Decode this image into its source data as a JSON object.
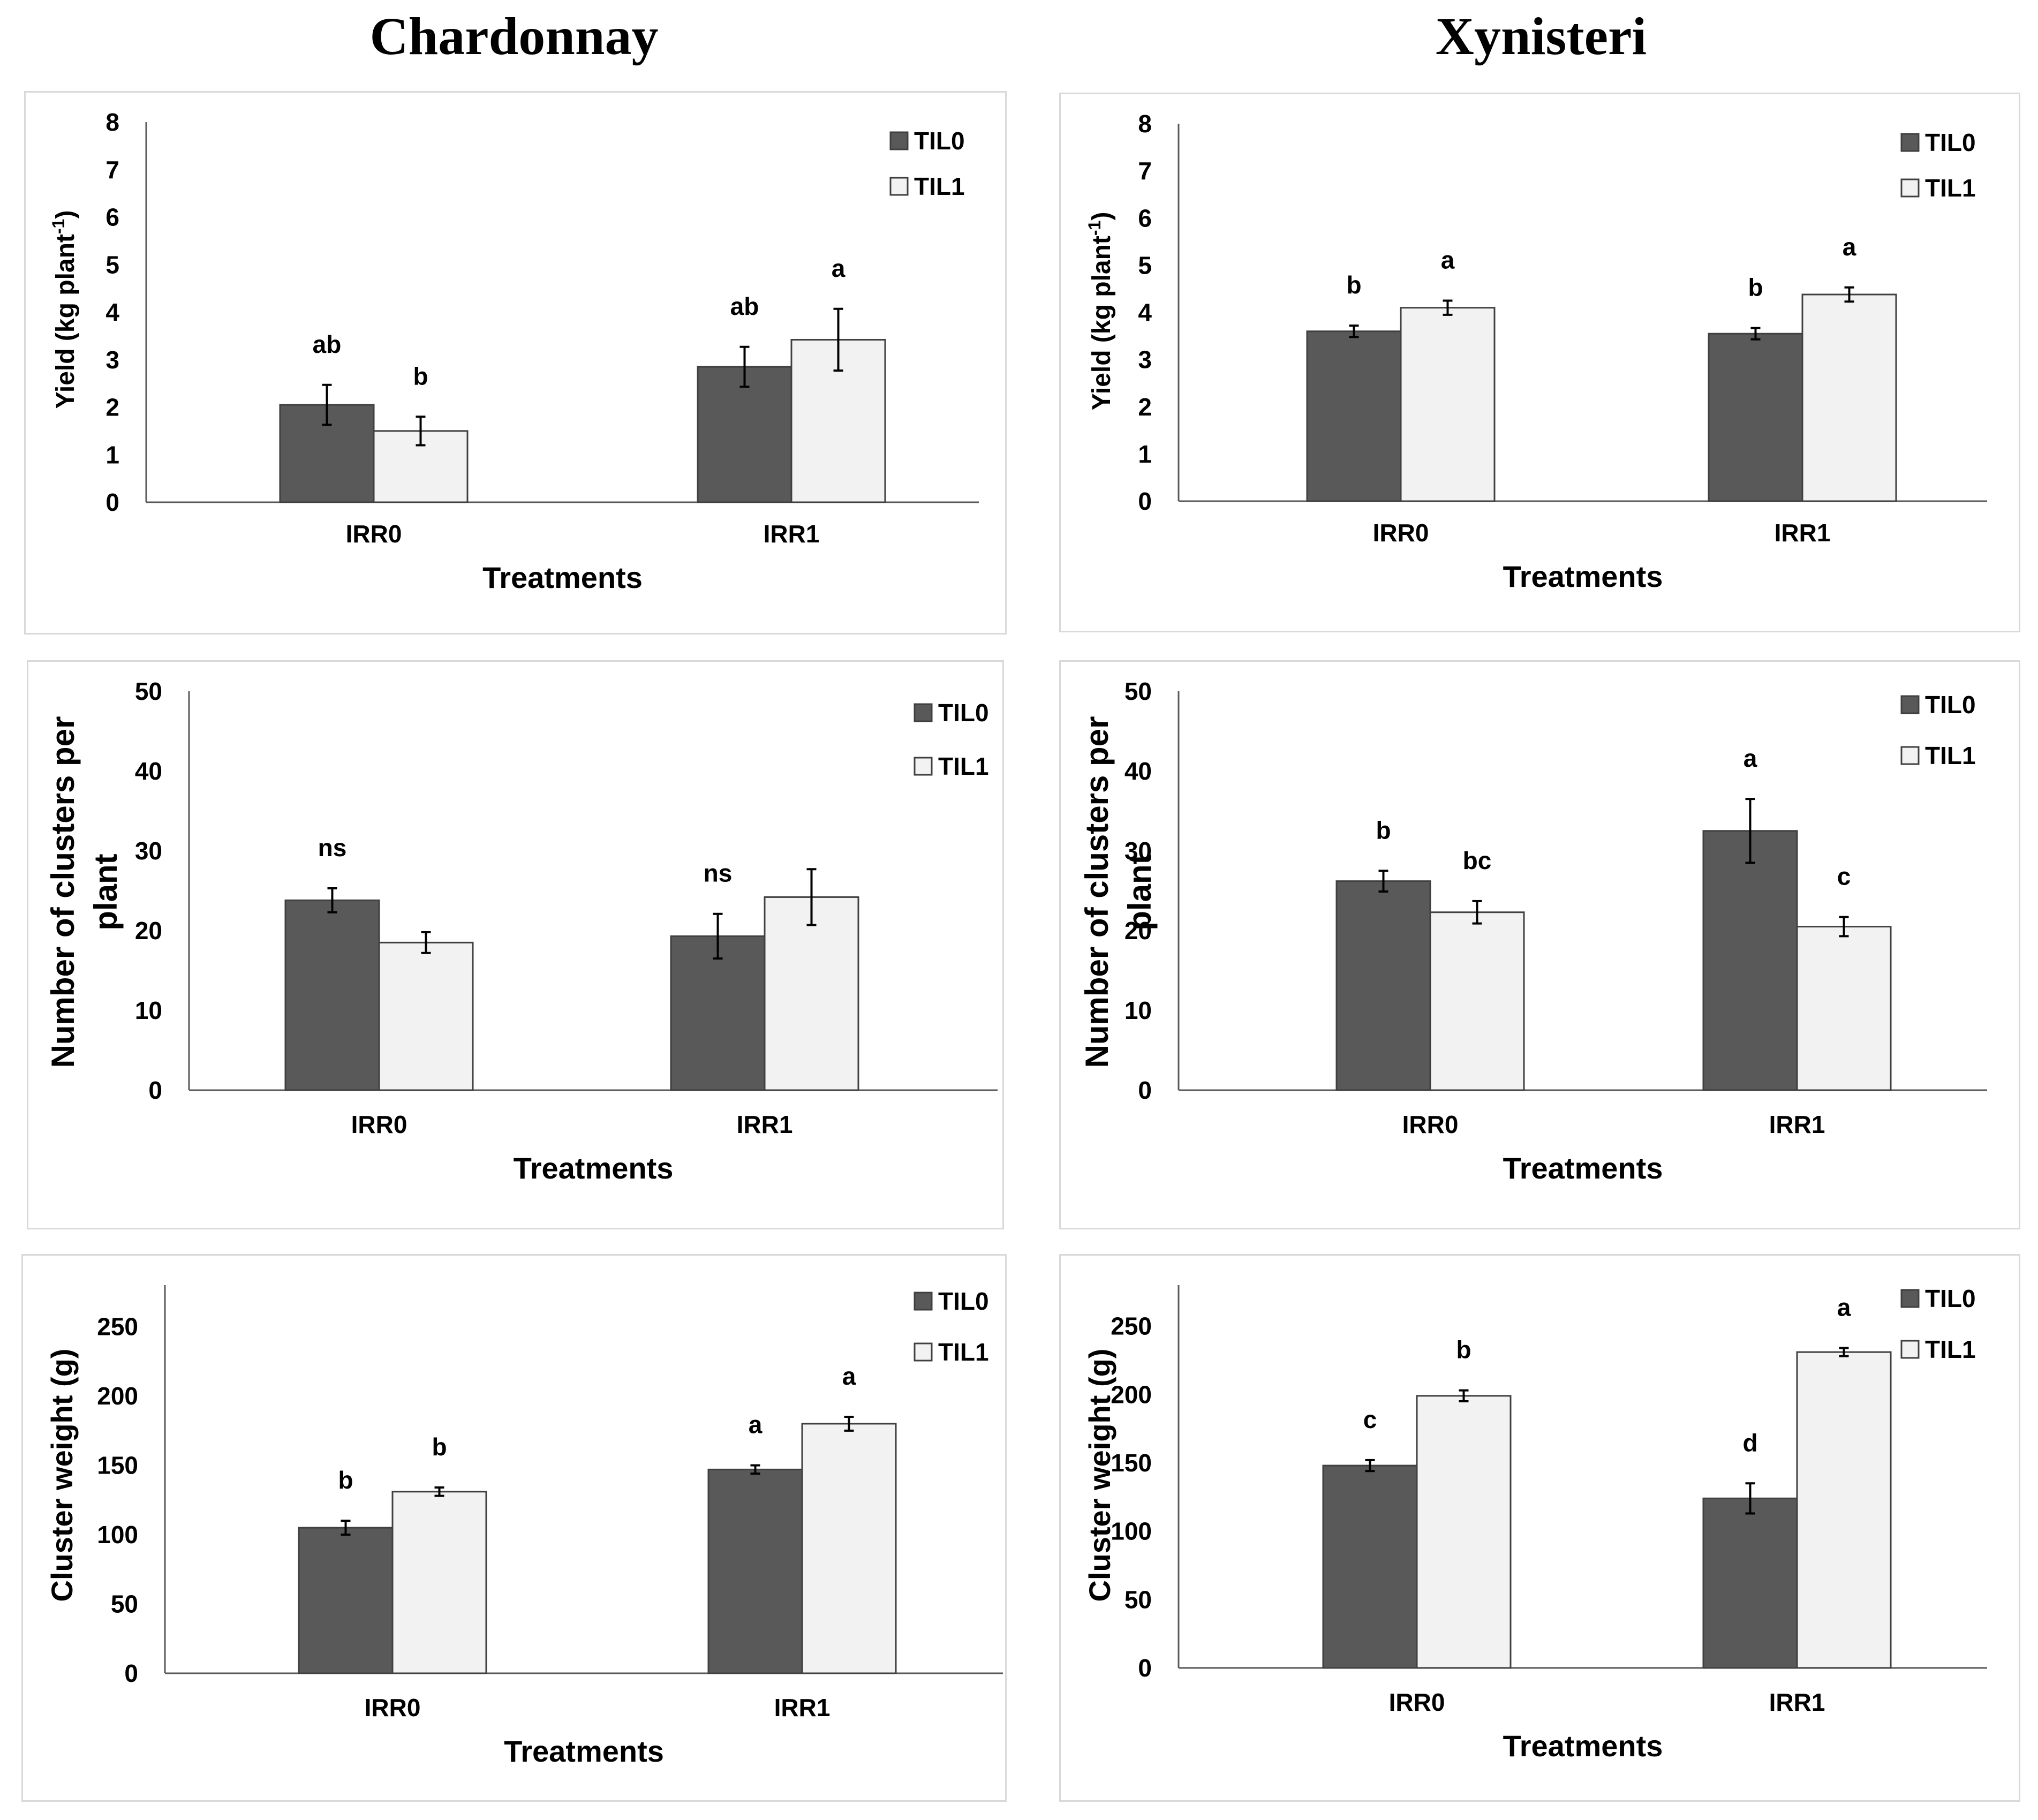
{
  "columns": [
    "Chardonnay",
    "Xynisteri"
  ],
  "colors": {
    "TIL0": "#595959",
    "TIL1": "#f2f2f2",
    "axis": "#595959",
    "text": "#000000"
  },
  "chart_data": [
    {
      "id": "chardonnay-yield",
      "type": "bar",
      "variety": "Chardonnay",
      "ylabel": "Yield (kg plant-1)",
      "ylabel_base": "Yield (kg plant",
      "ylabel_sup": "-1",
      "ylabel_close": ")",
      "xlabel": "Treatments",
      "ylim": [
        0,
        8
      ],
      "yticks": [
        0,
        1,
        2,
        3,
        4,
        5,
        6,
        7,
        8
      ],
      "categories": [
        "IRR0",
        "IRR1"
      ],
      "series": [
        {
          "name": "TIL0",
          "values": [
            2.05,
            2.85
          ],
          "errors": [
            0.42,
            0.42
          ],
          "letters": [
            "ab",
            "ab"
          ]
        },
        {
          "name": "TIL1",
          "values": [
            1.5,
            3.42
          ],
          "errors": [
            0.3,
            0.65
          ],
          "letters": [
            "b",
            "a"
          ]
        }
      ],
      "legend": "top-right"
    },
    {
      "id": "xynisteri-yield",
      "type": "bar",
      "variety": "Xynisteri",
      "ylabel": "Yield (kg plant-1)",
      "ylabel_base": "Yield (kg plant",
      "ylabel_sup": "-1",
      "ylabel_close": ")",
      "xlabel": "Treatments",
      "ylim": [
        0,
        8
      ],
      "yticks": [
        0,
        1,
        2,
        3,
        4,
        5,
        6,
        7,
        8
      ],
      "categories": [
        "IRR0",
        "IRR1"
      ],
      "series": [
        {
          "name": "TIL0",
          "values": [
            3.6,
            3.55
          ],
          "errors": [
            0.12,
            0.12
          ],
          "letters": [
            "b",
            "b"
          ]
        },
        {
          "name": "TIL1",
          "values": [
            4.1,
            4.38
          ],
          "errors": [
            0.15,
            0.15
          ],
          "letters": [
            "a",
            "a"
          ]
        }
      ],
      "legend": "top-right"
    },
    {
      "id": "chardonnay-clusters",
      "type": "bar",
      "variety": "Chardonnay",
      "ylabel_line1": "Number of  clusters per",
      "ylabel_line2": "plant",
      "xlabel": "Treatments",
      "ylim": [
        0,
        50
      ],
      "yticks": [
        0,
        10,
        20,
        30,
        40,
        50
      ],
      "categories": [
        "IRR0",
        "IRR1"
      ],
      "series": [
        {
          "name": "TIL0",
          "values": [
            23.8,
            19.3
          ],
          "errors": [
            1.5,
            2.8
          ],
          "letters": [
            "ns",
            "ns"
          ]
        },
        {
          "name": "TIL1",
          "values": [
            18.5,
            24.2
          ],
          "errors": [
            1.3,
            3.5
          ],
          "letters": [
            "",
            ""
          ]
        }
      ],
      "legend": "top-right"
    },
    {
      "id": "xynisteri-clusters",
      "type": "bar",
      "variety": "Xynisteri",
      "ylabel_line1": "Number of  clusters per",
      "ylabel_line2": "plant",
      "xlabel": "Treatments",
      "ylim": [
        0,
        50
      ],
      "yticks": [
        0,
        10,
        20,
        30,
        40,
        50
      ],
      "categories": [
        "IRR0",
        "IRR1"
      ],
      "series": [
        {
          "name": "TIL0",
          "values": [
            26.2,
            32.5
          ],
          "errors": [
            1.3,
            4.0
          ],
          "letters": [
            "b",
            "a"
          ]
        },
        {
          "name": "TIL1",
          "values": [
            22.3,
            20.5
          ],
          "errors": [
            1.4,
            1.2
          ],
          "letters": [
            "bc",
            "c"
          ]
        }
      ],
      "legend": "top-right"
    },
    {
      "id": "chardonnay-weight",
      "type": "bar",
      "variety": "Chardonnay",
      "ylabel": "Cluster weight (g)",
      "xlabel": "Treatments",
      "ylim": [
        0,
        280
      ],
      "yticks": [
        0,
        50,
        100,
        150,
        200,
        250
      ],
      "categories": [
        "IRR0",
        "IRR1"
      ],
      "series": [
        {
          "name": "TIL0",
          "values": [
            105,
            147
          ],
          "errors": [
            5,
            3
          ],
          "letters": [
            "b",
            "a"
          ]
        },
        {
          "name": "TIL1",
          "values": [
            131,
            180
          ],
          "errors": [
            3,
            5
          ],
          "letters": [
            "b",
            "a"
          ]
        }
      ],
      "legend": "top-right"
    },
    {
      "id": "xynisteri-weight",
      "type": "bar",
      "variety": "Xynisteri",
      "ylabel": "Cluster weight (g)",
      "xlabel": "Treatments",
      "ylim": [
        0,
        280
      ],
      "yticks": [
        0,
        50,
        100,
        150,
        200,
        250
      ],
      "categories": [
        "IRR0",
        "IRR1"
      ],
      "series": [
        {
          "name": "TIL0",
          "values": [
            148,
            124
          ],
          "errors": [
            4,
            11
          ],
          "letters": [
            "c",
            "d"
          ]
        },
        {
          "name": "TIL1",
          "values": [
            199,
            231
          ],
          "errors": [
            4,
            3
          ],
          "letters": [
            "b",
            "a"
          ]
        }
      ],
      "legend": "top-right"
    }
  ]
}
